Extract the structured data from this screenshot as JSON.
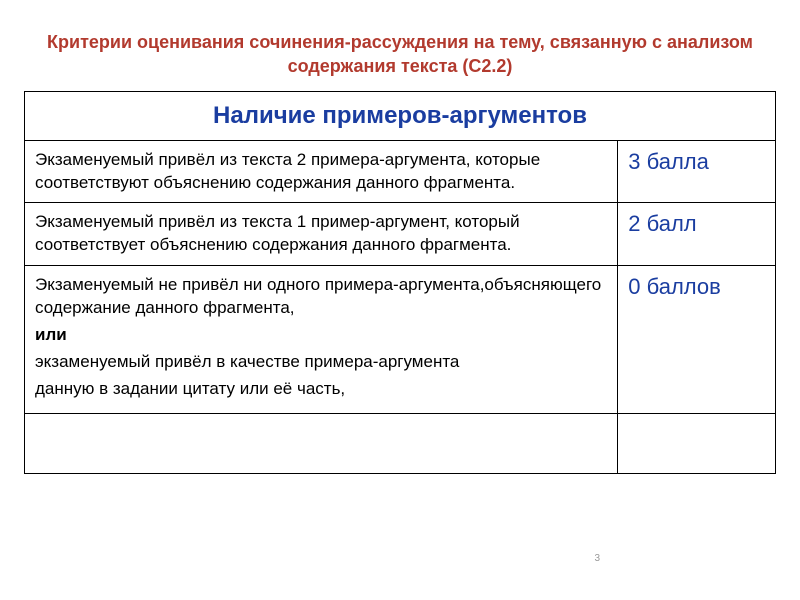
{
  "colors": {
    "title": "#b23a2e",
    "accent": "#1a3da0",
    "text": "#000000",
    "border": "#000000",
    "bg": "#ffffff"
  },
  "title": "Критерии оценивания сочинения-рассуждения на тему, связанную с анализом содержания текста (С2.2)",
  "table_header": "Наличие примеров-аргументов",
  "rows": [
    {
      "criteria_html": "Экзаменуемый привёл из текста 2 примера-аргумента, которые соответствуют объяснению содержания данного фрагмента.",
      "score": "3 балла"
    },
    {
      "criteria_html": "Экзаменуемый привёл из текста 1 пример-аргумент, который соответствует объяснению содержания данного фрагмента.",
      "score": "2 балл"
    },
    {
      "criteria_lines": [
        "Экзаменуемый не привёл ни одного примера-аргумента,объясняющего содержание данного фрагмента,",
        "или",
        "экзаменуемый привёл в качестве примера-аргумента",
        "данную в задании цитату или её часть,"
      ],
      "bold_line_index": 1,
      "score": "0 баллов"
    }
  ],
  "page_number": "3"
}
